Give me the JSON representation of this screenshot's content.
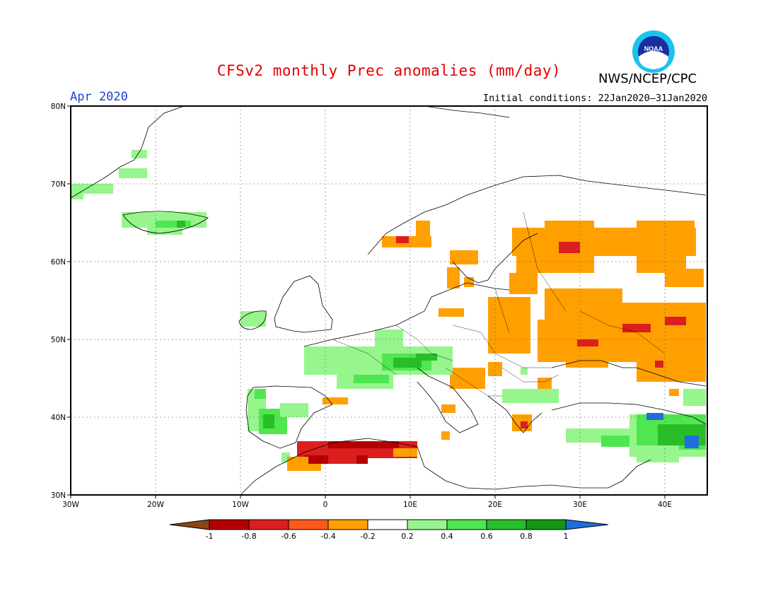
{
  "title": "CFSv2 monthly Prec anomalies (mm/day)",
  "agency": "NWS/NCEP/CPC",
  "logo_text": "NOAA",
  "month": "Apr 2020",
  "initial_conditions": "Initial conditions: 22Jan2020–31Jan2020",
  "axes": {
    "lon_labels": [
      "30W",
      "20W",
      "10W",
      "0",
      "10E",
      "20E",
      "30E",
      "40E"
    ],
    "lat_labels": [
      "30N",
      "40N",
      "50N",
      "60N",
      "70N",
      "80N"
    ],
    "lon_range": [
      -30,
      45
    ],
    "lat_range": [
      30,
      80
    ],
    "grid": "dotted"
  },
  "colorbar": {
    "labels": [
      "-1",
      "-0.8",
      "-0.6",
      "-0.4",
      "-0.2",
      "0.2",
      "0.4",
      "0.6",
      "0.8",
      "1"
    ],
    "colors": [
      "#8b4513",
      "#b40000",
      "#dc1e1e",
      "#ff5a1e",
      "#ffa000",
      "#ffffff",
      "#96f58c",
      "#50e650",
      "#28be28",
      "#149614",
      "#1e6edc"
    ]
  },
  "colors": {
    "title": "#e00000",
    "month": "#1a3fd6"
  }
}
